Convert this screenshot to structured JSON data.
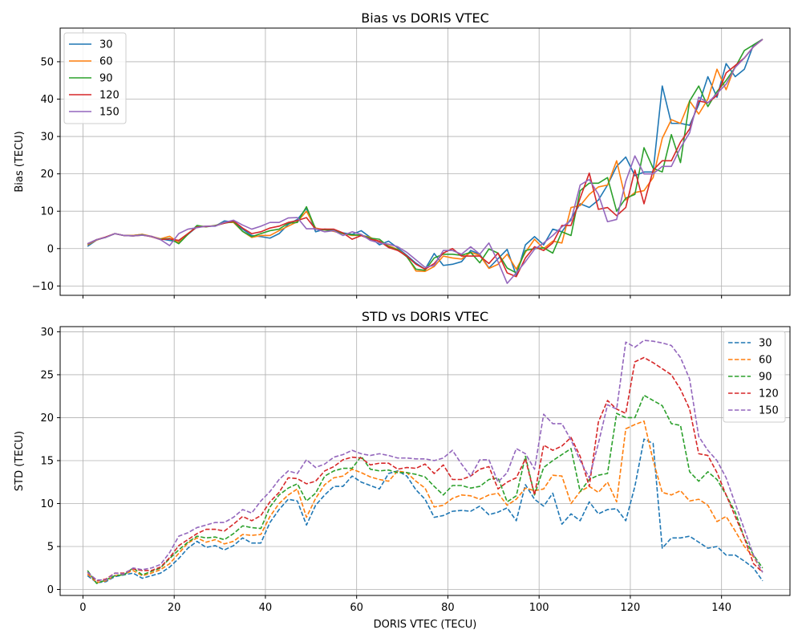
{
  "chart_data": [
    {
      "type": "line",
      "title": "Bias vs DORIS VTEC",
      "xlabel": "",
      "ylabel": "Bias (TECU)",
      "xlim": [
        -5,
        155
      ],
      "ylim": [
        -12.5,
        59
      ],
      "xticks": [
        0,
        20,
        40,
        60,
        80,
        100,
        120,
        140
      ],
      "yticks": [
        -10,
        0,
        10,
        20,
        30,
        40,
        50
      ],
      "show_xtick_labels": false,
      "grid": true,
      "legend": "top-left",
      "line_style": "solid",
      "x": [
        1,
        3,
        5,
        7,
        9,
        11,
        13,
        15,
        17,
        19,
        21,
        23,
        25,
        27,
        29,
        31,
        33,
        35,
        37,
        39,
        41,
        43,
        45,
        47,
        49,
        51,
        53,
        55,
        57,
        59,
        61,
        63,
        65,
        67,
        69,
        71,
        73,
        75,
        77,
        79,
        81,
        83,
        85,
        87,
        89,
        91,
        93,
        95,
        97,
        99,
        101,
        103,
        105,
        107,
        109,
        111,
        113,
        115,
        117,
        119,
        121,
        123,
        125,
        127,
        129,
        131,
        133,
        135,
        137,
        139,
        141,
        143,
        145,
        147,
        149
      ],
      "series": [
        {
          "name": "30",
          "color": "#1f77b4",
          "values": [
            0.6,
            2.3,
            3.1,
            4.0,
            3.5,
            3.5,
            3.8,
            3.2,
            2.6,
            2.2,
            1.8,
            3.8,
            5.8,
            6.0,
            6.0,
            7.4,
            7.1,
            5.2,
            3.5,
            3.2,
            2.8,
            4.0,
            6.5,
            7.8,
            10.8,
            4.5,
            5.2,
            5.0,
            4.2,
            3.8,
            4.8,
            3.0,
            1.0,
            2.0,
            0.2,
            -1.8,
            -3.9,
            -5.5,
            -1.3,
            -4.5,
            -4.2,
            -3.5,
            -0.5,
            -1.5,
            -5.2,
            -2.7,
            -0.2,
            -7.2,
            1.0,
            3.2,
            1.0,
            5.2,
            4.5,
            8.0,
            12.0,
            11.0,
            13.0,
            17.0,
            22.0,
            24.5,
            19.5,
            20.5,
            20.5,
            43.5,
            33.5,
            33.5,
            33.0,
            38.5,
            46.0,
            40.5,
            49.5,
            46.0,
            48.0,
            54.5,
            56.0
          ]
        },
        {
          "name": "60",
          "color": "#ff7f0e",
          "values": [
            1.0,
            2.3,
            3.1,
            4.0,
            3.5,
            3.5,
            3.8,
            3.3,
            2.6,
            3.3,
            1.6,
            4.0,
            5.8,
            6.0,
            6.1,
            7.0,
            7.0,
            4.6,
            3.0,
            3.5,
            3.5,
            4.8,
            6.0,
            7.2,
            10.0,
            5.5,
            5.0,
            4.6,
            4.0,
            3.5,
            3.6,
            3.0,
            1.8,
            0.8,
            -0.2,
            -2.0,
            -6.0,
            -6.1,
            -4.8,
            -2.0,
            -2.5,
            -2.8,
            -1.0,
            -1.8,
            -5.3,
            -4.2,
            -1.5,
            -5.5,
            -1.0,
            2.5,
            0.0,
            2.0,
            1.5,
            11.0,
            11.5,
            14.5,
            16.5,
            17.0,
            23.5,
            13.0,
            15.0,
            15.5,
            19.0,
            29.5,
            34.5,
            33.5,
            39.5,
            36.0,
            40.0,
            48.0,
            42.5,
            49.0,
            51.0,
            54.0,
            56.0
          ]
        },
        {
          "name": "90",
          "color": "#2ca02c",
          "values": [
            1.2,
            2.4,
            3.0,
            4.0,
            3.5,
            3.4,
            3.7,
            3.2,
            2.5,
            2.7,
            1.3,
            3.8,
            6.2,
            5.8,
            6.2,
            6.8,
            7.2,
            4.6,
            3.2,
            4.0,
            4.8,
            5.2,
            6.8,
            7.0,
            11.2,
            5.2,
            5.0,
            4.8,
            4.0,
            3.7,
            3.6,
            2.8,
            2.5,
            0.5,
            -0.3,
            -2.2,
            -5.5,
            -5.8,
            -2.5,
            -1.5,
            -1.5,
            -1.8,
            -1.0,
            -3.8,
            -0.1,
            -1.2,
            -5.2,
            -6.5,
            -0.5,
            0.0,
            0.2,
            -1.2,
            4.5,
            3.5,
            15.5,
            17.5,
            17.5,
            19.0,
            10.0,
            13.5,
            14.5,
            27.0,
            21.5,
            20.5,
            30.5,
            23.0,
            39.5,
            43.5,
            38.0,
            42.0,
            45.0,
            48.5,
            53.0,
            54.5,
            56.0
          ]
        },
        {
          "name": "120",
          "color": "#d62728",
          "values": [
            1.3,
            2.4,
            3.1,
            4.0,
            3.5,
            3.4,
            3.6,
            3.2,
            2.4,
            2.6,
            2.2,
            4.0,
            5.8,
            5.9,
            6.1,
            6.8,
            7.4,
            5.5,
            4.0,
            4.5,
            5.5,
            6.0,
            7.0,
            7.5,
            8.3,
            5.2,
            5.2,
            5.2,
            4.2,
            2.5,
            3.5,
            2.5,
            2.0,
            0.3,
            -0.5,
            -2.0,
            -4.2,
            -5.5,
            -4.0,
            -1.2,
            0.0,
            -2.0,
            -2.0,
            -2.0,
            -4.0,
            -1.2,
            -6.5,
            -7.5,
            -2.5,
            0.5,
            -0.5,
            1.5,
            6.2,
            6.2,
            13.5,
            20.2,
            10.5,
            11.0,
            8.8,
            11.0,
            21.0,
            12.0,
            21.0,
            23.5,
            23.5,
            28.5,
            32.0,
            39.5,
            39.0,
            41.0,
            47.0,
            49.0,
            51.0,
            54.0,
            56.0
          ]
        },
        {
          "name": "150",
          "color": "#9467bd",
          "values": [
            1.3,
            2.4,
            3.0,
            4.0,
            3.5,
            3.4,
            3.6,
            3.3,
            2.4,
            0.8,
            4.0,
            5.2,
            5.6,
            6.0,
            6.0,
            7.0,
            7.6,
            6.3,
            5.2,
            6.0,
            7.0,
            7.0,
            8.2,
            8.3,
            5.3,
            5.3,
            4.5,
            4.8,
            3.5,
            4.5,
            3.8,
            2.2,
            1.5,
            1.2,
            0.5,
            -1.0,
            -3.0,
            -5.0,
            -4.5,
            -0.5,
            -0.5,
            -1.5,
            0.5,
            -1.5,
            1.5,
            -3.5,
            -9.3,
            -6.5,
            -3.5,
            -0.2,
            1.5,
            3.5,
            5.8,
            7.5,
            17.0,
            18.5,
            14.5,
            7.2,
            7.8,
            18.0,
            24.8,
            20.0,
            20.0,
            22.0,
            22.0,
            27.0,
            31.0,
            40.5,
            39.0,
            41.5,
            44.0,
            48.5,
            51.0,
            54.0,
            56.0
          ]
        }
      ]
    },
    {
      "type": "line",
      "title": "STD vs DORIS VTEC",
      "xlabel": "DORIS VTEC (TECU)",
      "ylabel": "STD (TECU)",
      "xlim": [
        -5,
        155
      ],
      "ylim": [
        -0.7,
        30.6
      ],
      "xticks": [
        0,
        20,
        40,
        60,
        80,
        100,
        120,
        140
      ],
      "yticks": [
        0,
        5,
        10,
        15,
        20,
        25,
        30
      ],
      "show_xtick_labels": true,
      "grid": true,
      "legend": "top-right",
      "line_style": "dashed",
      "x": [
        1,
        3,
        5,
        7,
        9,
        11,
        13,
        15,
        17,
        19,
        21,
        23,
        25,
        27,
        29,
        31,
        33,
        35,
        37,
        39,
        41,
        43,
        45,
        47,
        49,
        51,
        53,
        55,
        57,
        59,
        61,
        63,
        65,
        67,
        69,
        71,
        73,
        75,
        77,
        79,
        81,
        83,
        85,
        87,
        89,
        91,
        93,
        95,
        97,
        99,
        101,
        103,
        105,
        107,
        109,
        111,
        113,
        115,
        117,
        119,
        121,
        123,
        125,
        127,
        129,
        131,
        133,
        135,
        137,
        139,
        141,
        143,
        145,
        147,
        149
      ],
      "series": [
        {
          "name": "30",
          "color": "#1f77b4",
          "values": [
            1.6,
            0.8,
            0.9,
            1.5,
            1.7,
            1.9,
            1.3,
            1.6,
            1.9,
            2.6,
            3.6,
            4.8,
            5.6,
            4.9,
            5.1,
            4.6,
            5.1,
            6.0,
            5.4,
            5.4,
            7.8,
            9.3,
            10.5,
            10.3,
            7.5,
            9.8,
            11.0,
            12.0,
            12.0,
            13.2,
            12.5,
            12.1,
            11.7,
            13.5,
            13.8,
            13.2,
            11.6,
            10.5,
            8.4,
            8.6,
            9.1,
            9.2,
            9.1,
            9.7,
            8.7,
            9.0,
            9.5,
            8.0,
            12.2,
            10.5,
            9.7,
            11.2,
            7.6,
            8.8,
            8.0,
            10.2,
            8.8,
            9.3,
            9.4,
            8.0,
            12.0,
            17.5,
            17.0,
            4.8,
            6.0,
            6.0,
            6.2,
            5.5,
            4.8,
            5.0,
            4.0,
            4.0,
            3.3,
            2.5,
            1.0
          ]
        },
        {
          "name": "60",
          "color": "#ff7f0e",
          "values": [
            1.8,
            0.8,
            1.0,
            1.6,
            1.8,
            2.2,
            1.6,
            1.9,
            2.3,
            3.0,
            4.2,
            5.4,
            6.0,
            5.5,
            5.8,
            5.3,
            5.6,
            6.4,
            6.3,
            6.4,
            8.5,
            10.0,
            11.0,
            11.7,
            8.4,
            10.6,
            12.2,
            13.0,
            13.2,
            14.0,
            13.6,
            13.1,
            12.8,
            12.6,
            13.8,
            13.6,
            12.6,
            11.8,
            9.6,
            9.8,
            10.6,
            11.0,
            10.9,
            10.5,
            11.0,
            11.2,
            9.8,
            10.5,
            11.8,
            11.5,
            11.7,
            13.3,
            13.2,
            10.0,
            11.4,
            12.0,
            11.3,
            12.5,
            10.2,
            18.7,
            19.2,
            19.6,
            15.0,
            11.3,
            11.0,
            11.5,
            10.3,
            10.5,
            9.8,
            7.9,
            8.5,
            6.8,
            5.0,
            3.8,
            2.0
          ]
        },
        {
          "name": "90",
          "color": "#2ca02c",
          "values": [
            2.2,
            0.7,
            1.1,
            1.6,
            1.7,
            2.5,
            1.7,
            2.1,
            2.5,
            3.6,
            4.6,
            5.5,
            6.2,
            6.0,
            6.1,
            5.8,
            6.5,
            7.4,
            7.2,
            7.1,
            9.6,
            11.0,
            11.8,
            12.3,
            10.3,
            11.2,
            13.2,
            13.8,
            14.1,
            14.1,
            15.5,
            14.0,
            13.8,
            13.9,
            13.6,
            13.6,
            13.4,
            13.1,
            12.0,
            11.0,
            12.1,
            12.1,
            11.8,
            12.0,
            12.8,
            13.0,
            10.2,
            10.9,
            15.5,
            11.0,
            14.2,
            15.0,
            15.7,
            16.4,
            11.4,
            12.8,
            13.3,
            13.5,
            20.5,
            20.0,
            20.0,
            22.6,
            22.0,
            21.4,
            19.3,
            19.1,
            13.7,
            12.6,
            13.7,
            12.8,
            11.0,
            9.0,
            6.0,
            4.0,
            2.5
          ]
        },
        {
          "name": "120",
          "color": "#d62728",
          "values": [
            2.0,
            1.0,
            1.2,
            1.9,
            1.9,
            2.4,
            2.2,
            2.2,
            2.6,
            3.7,
            5.1,
            5.8,
            6.5,
            7.0,
            7.0,
            6.8,
            7.6,
            8.5,
            8.0,
            8.6,
            10.2,
            11.3,
            13.0,
            12.9,
            12.3,
            12.6,
            13.8,
            14.3,
            15.1,
            15.4,
            15.3,
            14.5,
            14.7,
            14.7,
            14.0,
            14.2,
            14.1,
            14.6,
            13.5,
            14.5,
            12.8,
            12.8,
            13.2,
            14.0,
            14.3,
            11.7,
            12.5,
            13.0,
            15.2,
            11.0,
            16.8,
            16.2,
            16.7,
            17.7,
            15.5,
            12.0,
            19.5,
            22.0,
            21.0,
            20.5,
            26.5,
            27.0,
            26.4,
            25.7,
            25.0,
            23.3,
            21.0,
            15.8,
            15.6,
            13.6,
            11.0,
            8.5,
            6.0,
            3.0,
            2.0
          ]
        },
        {
          "name": "150",
          "color": "#9467bd",
          "values": [
            2.0,
            1.1,
            1.1,
            1.9,
            1.8,
            2.5,
            2.3,
            2.5,
            2.9,
            4.3,
            6.2,
            6.6,
            7.2,
            7.5,
            7.8,
            7.8,
            8.4,
            9.3,
            8.9,
            10.3,
            11.4,
            12.8,
            13.8,
            13.5,
            15.1,
            14.2,
            14.6,
            15.4,
            15.7,
            16.2,
            15.8,
            15.6,
            15.8,
            15.6,
            15.3,
            15.3,
            15.2,
            15.2,
            15.0,
            15.3,
            16.2,
            14.6,
            13.2,
            15.1,
            15.1,
            12.5,
            13.6,
            16.4,
            15.8,
            14.0,
            20.4,
            19.3,
            19.3,
            17.4,
            15.0,
            13.0,
            17.0,
            21.5,
            21.0,
            28.8,
            28.2,
            29.0,
            28.9,
            28.7,
            28.4,
            27.0,
            24.5,
            17.8,
            16.2,
            15.0,
            13.0,
            10.0,
            7.0,
            4.0,
            2.0
          ]
        }
      ]
    }
  ]
}
